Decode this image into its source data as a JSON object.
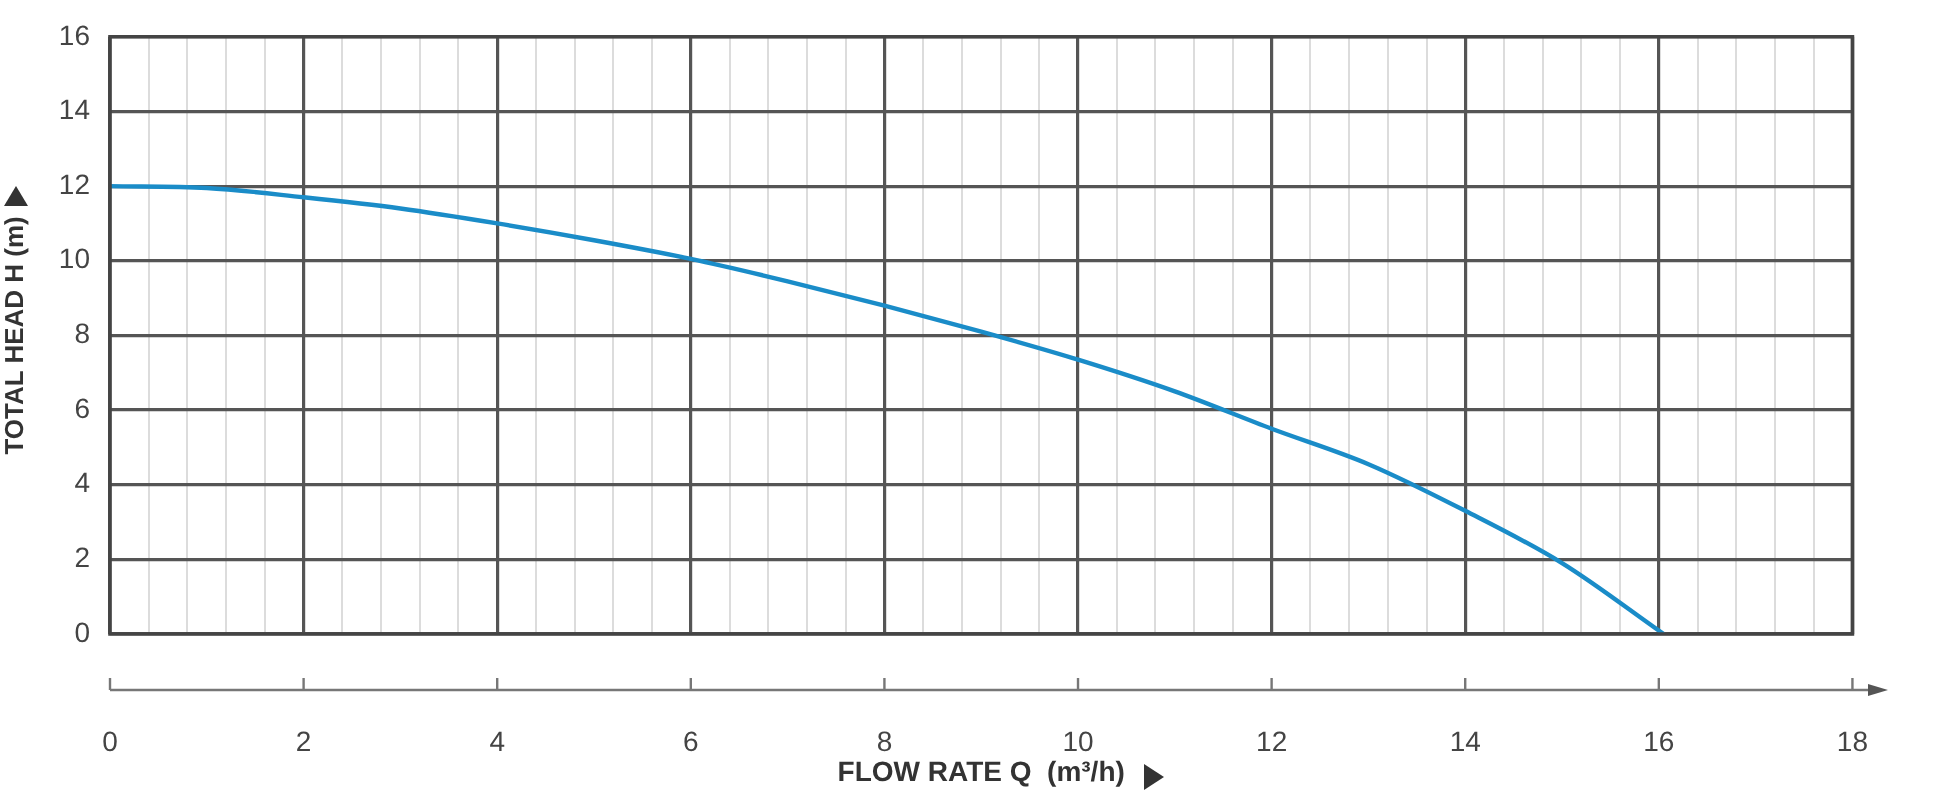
{
  "chart_data": {
    "type": "line",
    "xlabel": "FLOW RATE Q  (m³/h)",
    "ylabel": "TOTAL HEAD H (m)",
    "x": [
      0,
      1,
      2,
      3,
      4,
      5,
      6,
      7,
      8,
      9,
      10,
      11,
      12,
      13,
      14,
      15,
      16.05
    ],
    "series": [
      {
        "color": "#1a8cc8",
        "values": [
          12,
          11.95,
          11.7,
          11.4,
          11,
          10.55,
          10.05,
          9.45,
          8.8,
          8.1,
          7.35,
          6.5,
          5.5,
          4.55,
          3.3,
          1.9,
          0
        ]
      }
    ],
    "xlim": [
      0,
      18
    ],
    "xticks": [
      0,
      {
        "value": 0.4,
        "label": null
      },
      {
        "value": 0.8,
        "label": null
      },
      {
        "value": 1.2,
        "label": null
      },
      {
        "value": 1.6,
        "label": null
      },
      2,
      {
        "value": 2.4,
        "label": null
      },
      {
        "value": 2.8,
        "label": null
      },
      {
        "value": 3.2,
        "label": null
      },
      {
        "value": 3.6,
        "label": null
      },
      4,
      {
        "value": 4.4,
        "label": null
      },
      {
        "value": 4.8,
        "label": null
      },
      {
        "value": 5.2,
        "label": null
      },
      {
        "value": 5.6,
        "label": null
      },
      6,
      {
        "value": 6.4,
        "label": null
      },
      {
        "value": 6.8,
        "label": null
      },
      {
        "value": 7.2,
        "label": null
      },
      {
        "value": 7.6,
        "label": null
      },
      8,
      {
        "value": 8.4,
        "label": null
      },
      {
        "value": 8.8,
        "label": null
      },
      {
        "value": 9.2,
        "label": null
      },
      {
        "value": 9.6,
        "label": null
      },
      10,
      {
        "value": 10.4,
        "label": null
      },
      {
        "value": 10.8,
        "label": null
      },
      {
        "value": 11.2,
        "label": null
      },
      {
        "value": 11.6,
        "label": null
      },
      12,
      {
        "value": 12.4,
        "label": null
      },
      {
        "value": 12.8,
        "label": null
      },
      {
        "value": 13.2,
        "label": null
      },
      {
        "value": 13.6,
        "label": null
      },
      14,
      {
        "value": 14.4,
        "label": null
      },
      {
        "value": 14.8,
        "label": null
      },
      {
        "value": 15.2,
        "label": null
      },
      {
        "value": 15.6,
        "label": null
      },
      16,
      {
        "value": 16.4,
        "label": null
      },
      {
        "value": 16.8,
        "label": null
      },
      {
        "value": 17.2,
        "label": null
      },
      {
        "value": 17.6,
        "label": null
      },
      18
    ],
    "ylim": [
      0,
      16
    ],
    "yticks": [
      0,
      2,
      4,
      6,
      8,
      10,
      12,
      14,
      16
    ],
    "grid": true,
    "legend": false,
    "marker": "none",
    "line_style": "solid"
  }
}
